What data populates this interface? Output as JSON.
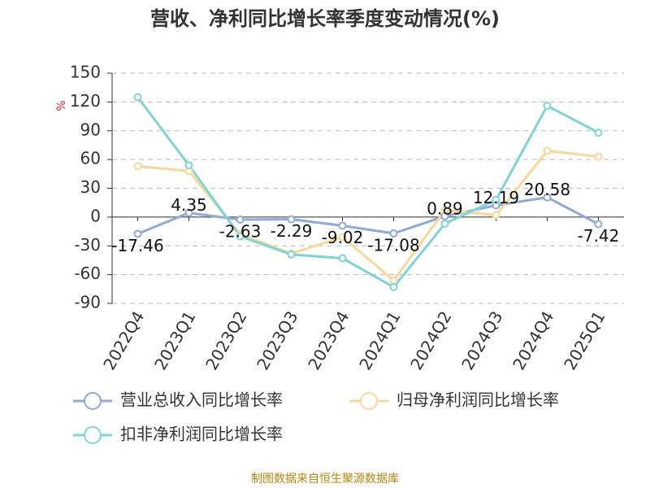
{
  "chart_data": {
    "type": "line",
    "title": "营收、净利同比增长率季度变动情况(%)",
    "y_label": "%",
    "categories": [
      "2022Q4",
      "2023Q1",
      "2023Q2",
      "2023Q3",
      "2023Q4",
      "2024Q1",
      "2024Q2",
      "2024Q3",
      "2024Q4",
      "2025Q1"
    ],
    "series": [
      {
        "name": "营业总收入同比增长率",
        "color": "#8fa9d9",
        "values": [
          -17.46,
          4.35,
          -2.63,
          -2.29,
          -9.02,
          -17.08,
          0.89,
          12.19,
          20.58,
          -7.42
        ],
        "data_labels": true
      },
      {
        "name": "归母净利润同比增长率",
        "color": "#f8d898",
        "values": [
          53,
          48,
          -18,
          -38,
          -21,
          -66,
          7,
          2,
          69,
          63
        ]
      },
      {
        "name": "扣非净利润同比增长率",
        "color": "#7fd3d6",
        "values": [
          125,
          54,
          -20,
          -39,
          -43,
          -73,
          -7,
          18,
          116,
          88
        ]
      }
    ],
    "ylim": [
      -90,
      150
    ],
    "yticks": [
      150,
      120,
      90,
      60,
      30,
      0,
      -30,
      -60,
      -90
    ],
    "grid": true,
    "source": "制图数据来自恒生聚源数据库"
  }
}
